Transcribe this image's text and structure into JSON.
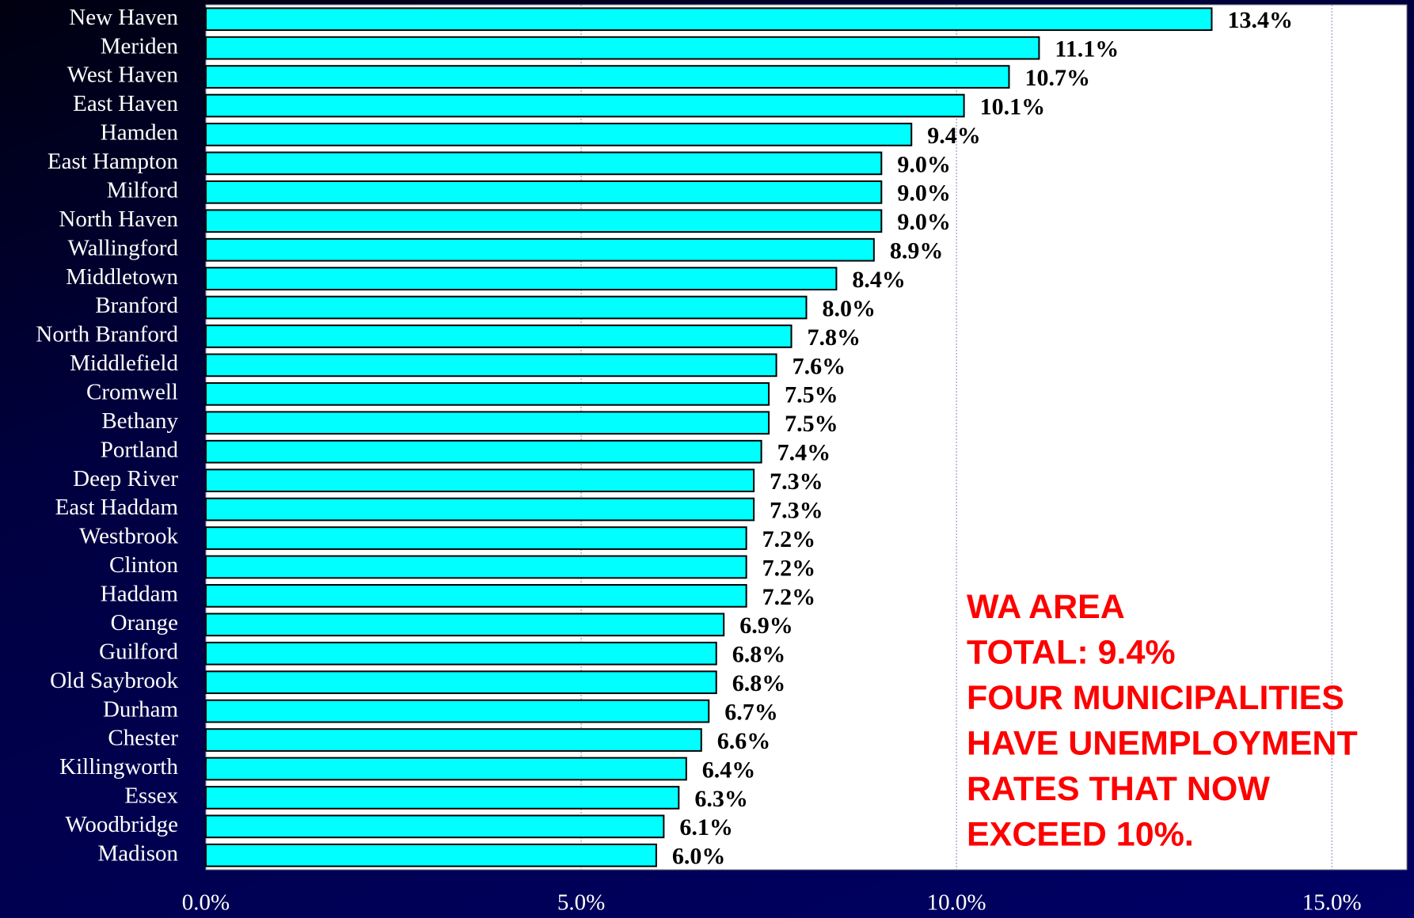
{
  "chart_data": {
    "type": "bar",
    "orientation": "horizontal",
    "categories": [
      "New Haven",
      "Meriden",
      "West Haven",
      "East Haven",
      "Hamden",
      "East Hampton",
      "Milford",
      "North Haven",
      "Wallingford",
      "Middletown",
      "Branford",
      "North Branford",
      "Middlefield",
      "Cromwell",
      "Bethany",
      "Portland",
      "Deep River",
      "East Haddam",
      "Westbrook",
      "Clinton",
      "Haddam",
      "Orange",
      "Guilford",
      "Old Saybrook",
      "Durham",
      "Chester",
      "Killingworth",
      "Essex",
      "Woodbridge",
      "Madison"
    ],
    "values": [
      13.4,
      11.1,
      10.7,
      10.1,
      9.4,
      9.0,
      9.0,
      9.0,
      8.9,
      8.4,
      8.0,
      7.8,
      7.6,
      7.5,
      7.5,
      7.4,
      7.3,
      7.3,
      7.2,
      7.2,
      7.2,
      6.9,
      6.8,
      6.8,
      6.7,
      6.6,
      6.4,
      6.3,
      6.1,
      6.0
    ],
    "value_labels": [
      "13.4%",
      "11.1%",
      "10.7%",
      "10.1%",
      "9.4%",
      "9.0%",
      "9.0%",
      "9.0%",
      "8.9%",
      "8.4%",
      "8.0%",
      "7.8%",
      "7.6%",
      "7.5%",
      "7.5%",
      "7.4%",
      "7.3%",
      "7.3%",
      "7.2%",
      "7.2%",
      "7.2%",
      "6.9%",
      "6.8%",
      "6.8%",
      "6.7%",
      "6.6%",
      "6.4%",
      "6.3%",
      "6.1%",
      "6.0%"
    ],
    "color": "#00ffff",
    "xlim": [
      0,
      16
    ],
    "xticks": [
      {
        "value": 0,
        "label": "0.0%"
      },
      {
        "value": 5,
        "label": "5.0%"
      },
      {
        "value": 10,
        "label": "10.0%"
      },
      {
        "value": 15,
        "label": "15.0%"
      }
    ],
    "grid": true,
    "annotation": [
      "WA AREA",
      "TOTAL: 9.4%",
      "FOUR MUNICIPALITIES",
      "HAVE UNEMPLOYMENT",
      "RATES THAT NOW",
      "EXCEED 10%."
    ]
  }
}
